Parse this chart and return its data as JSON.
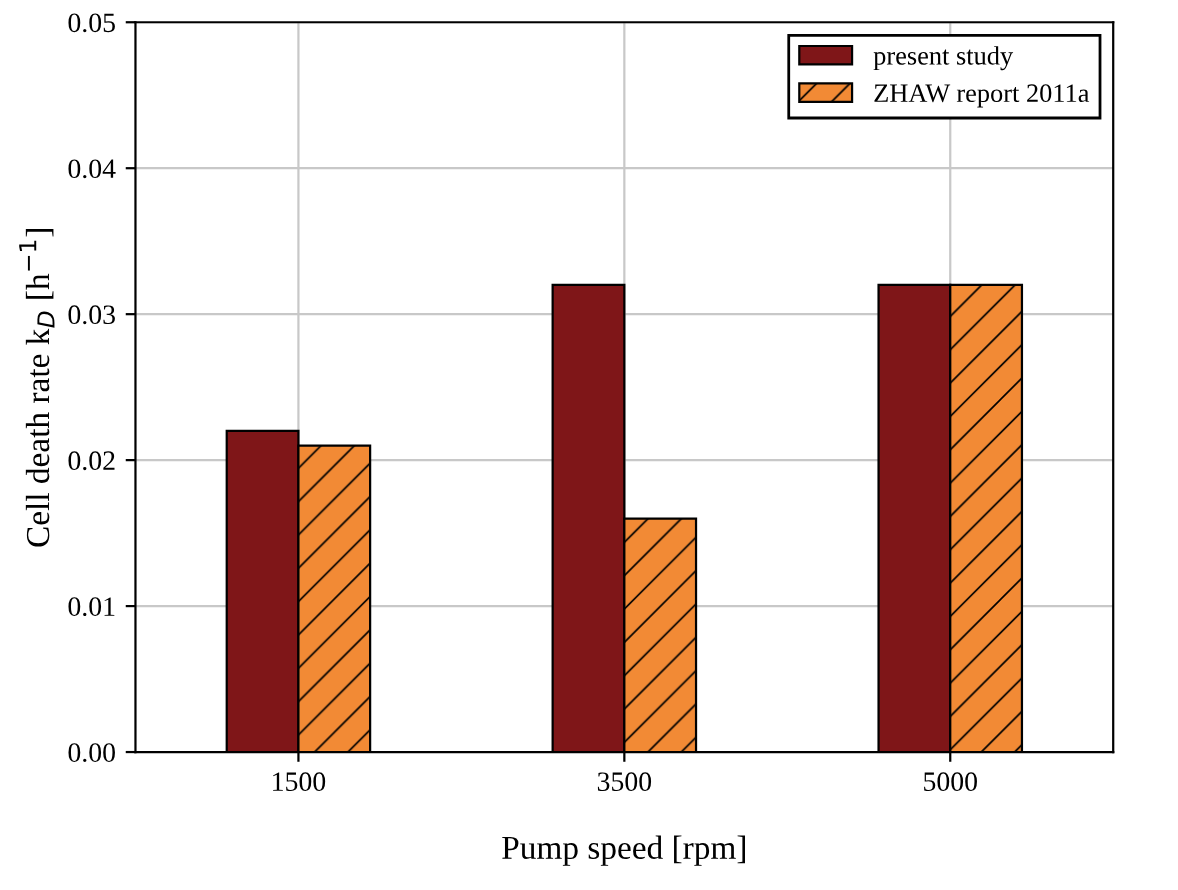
{
  "chart_data": {
    "type": "bar",
    "xlabel": "Pump speed [rpm]",
    "ylabel": "Cell death rate k$_{D}$ [h$^{−1}$]",
    "categories": [
      "1500",
      "3500",
      "5000"
    ],
    "series": [
      {
        "name": "present study",
        "color": "#7f1618",
        "values": [
          0.022,
          0.032,
          0.032
        ]
      },
      {
        "name": "ZHAW report 2011a",
        "color": "#f28a35",
        "values": [
          0.021,
          0.016,
          0.032
        ]
      }
    ],
    "ylim": [
      0,
      0.05
    ],
    "yticks": [
      {
        "value": 0,
        "label": "0.00"
      },
      {
        "value": 0.01,
        "label": "0.01"
      },
      {
        "value": 0.02,
        "label": "0.02"
      },
      {
        "value": 0.03,
        "label": "0.03"
      },
      {
        "value": 0.04,
        "label": "0.04"
      },
      {
        "value": 0.05,
        "label": "0.05"
      }
    ],
    "grid": true,
    "legend": "top right"
  }
}
